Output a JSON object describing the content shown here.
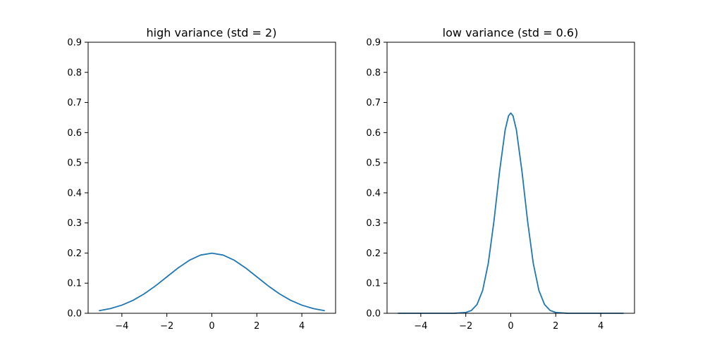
{
  "chart_data": [
    {
      "type": "line",
      "title": "high variance (std = 2)",
      "xlabel": "",
      "ylabel": "",
      "xlim": [
        -5.5,
        5.5
      ],
      "ylim": [
        0.0,
        0.9
      ],
      "xticks": [
        -4,
        -2,
        0,
        2,
        4
      ],
      "xtick_labels": [
        "−4",
        "−2",
        "0",
        "2",
        "4"
      ],
      "yticks": [
        0.0,
        0.1,
        0.2,
        0.3,
        0.4,
        0.5,
        0.6,
        0.7,
        0.8,
        0.9
      ],
      "ytick_labels": [
        "0.0",
        "0.1",
        "0.2",
        "0.3",
        "0.4",
        "0.5",
        "0.6",
        "0.7",
        "0.8",
        "0.9"
      ],
      "grid": false,
      "series": [
        {
          "color": "#1f77b4",
          "x": [
            -5.0,
            -4.5,
            -4.0,
            -3.5,
            -3.0,
            -2.5,
            -2.0,
            -1.5,
            -1.0,
            -0.5,
            0.0,
            0.5,
            1.0,
            1.5,
            2.0,
            2.5,
            3.0,
            3.5,
            4.0,
            4.5,
            5.0
          ],
          "y": [
            0.0088,
            0.0158,
            0.027,
            0.0431,
            0.0648,
            0.0913,
            0.121,
            0.1506,
            0.176,
            0.1933,
            0.1995,
            0.1933,
            0.176,
            0.1506,
            0.121,
            0.0913,
            0.0648,
            0.0431,
            0.027,
            0.0158,
            0.0088
          ]
        }
      ]
    },
    {
      "type": "line",
      "title": "low variance (std = 0.6)",
      "xlabel": "",
      "ylabel": "",
      "xlim": [
        -5.5,
        5.5
      ],
      "ylim": [
        0.0,
        0.9
      ],
      "xticks": [
        -4,
        -2,
        0,
        2,
        4
      ],
      "xtick_labels": [
        "−4",
        "−2",
        "0",
        "2",
        "4"
      ],
      "yticks": [
        0.0,
        0.1,
        0.2,
        0.3,
        0.4,
        0.5,
        0.6,
        0.7,
        0.8,
        0.9
      ],
      "ytick_labels": [
        "0.0",
        "0.1",
        "0.2",
        "0.3",
        "0.4",
        "0.5",
        "0.6",
        "0.7",
        "0.8",
        "0.9"
      ],
      "grid": false,
      "series": [
        {
          "color": "#1f77b4",
          "x": [
            -5.0,
            -4.0,
            -3.0,
            -2.5,
            -2.0,
            -1.75,
            -1.5,
            -1.25,
            -1.0,
            -0.75,
            -0.5,
            -0.25,
            -0.1,
            0.0,
            0.1,
            0.25,
            0.5,
            0.75,
            1.0,
            1.25,
            1.5,
            1.75,
            2.0,
            2.5,
            3.0,
            4.0,
            5.0
          ],
          "y": [
            0.0,
            0.0,
            0.0,
            0.0001,
            0.0026,
            0.0094,
            0.0292,
            0.0758,
            0.1658,
            0.3046,
            0.4698,
            0.6087,
            0.6557,
            0.6649,
            0.6557,
            0.6087,
            0.4698,
            0.3046,
            0.1658,
            0.0758,
            0.0292,
            0.0094,
            0.0026,
            0.0001,
            0.0,
            0.0,
            0.0
          ]
        }
      ]
    }
  ]
}
